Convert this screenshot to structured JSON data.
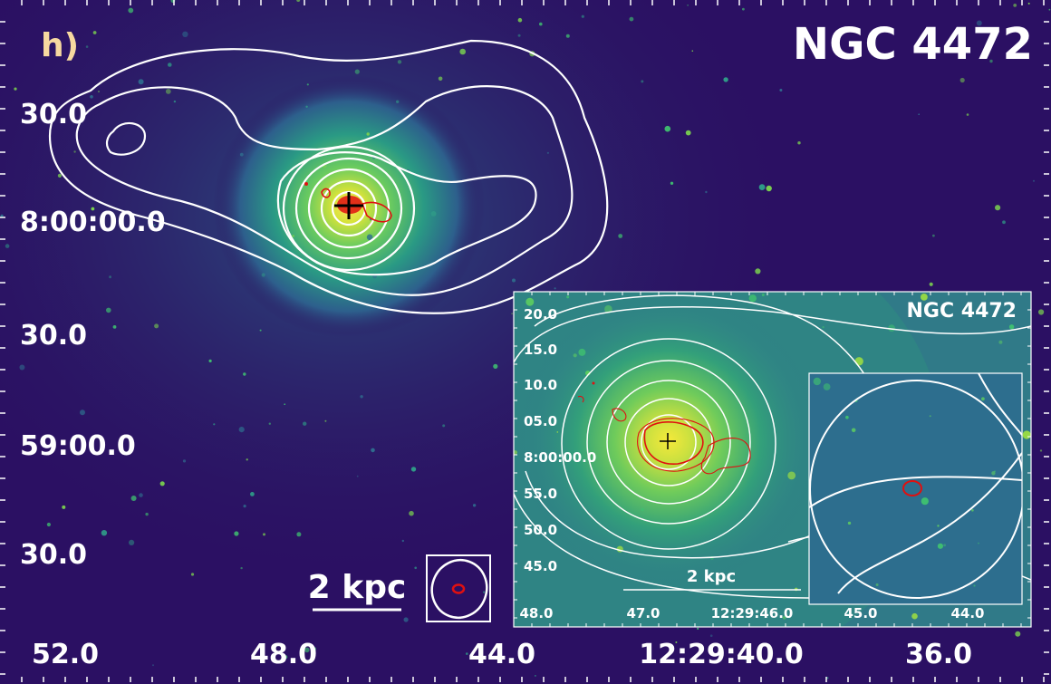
{
  "panel_label": "h)",
  "title": "NGC 4472",
  "inset_title": "NGC 4472",
  "scalebar_label": "2 kpc",
  "inset_scalebar_label": "2 kpc",
  "ra_ticks": [
    "52.0",
    "48.0",
    "44.0",
    "12:29:40.0",
    "36.0"
  ],
  "dec_ticks": [
    "30.0",
    "8:00:00.0",
    "30.0",
    "59:00.0",
    "30.0"
  ],
  "inset_dec_ticks": [
    "20.0",
    "15.0",
    "10.0",
    "05.0",
    "8:00:00.0",
    "55.0",
    "50.0",
    "45.0"
  ],
  "inset_ra_ticks": [
    "48.0",
    "47.0",
    "12:29:46.0",
    "45.0",
    "44.0"
  ],
  "colors": {
    "background": "#2b0f5e",
    "contour_radio_low": "#ffffff",
    "contour_radio_high": "#e01010",
    "panel_label": "#f7d9a0",
    "cross": "#000000"
  }
}
